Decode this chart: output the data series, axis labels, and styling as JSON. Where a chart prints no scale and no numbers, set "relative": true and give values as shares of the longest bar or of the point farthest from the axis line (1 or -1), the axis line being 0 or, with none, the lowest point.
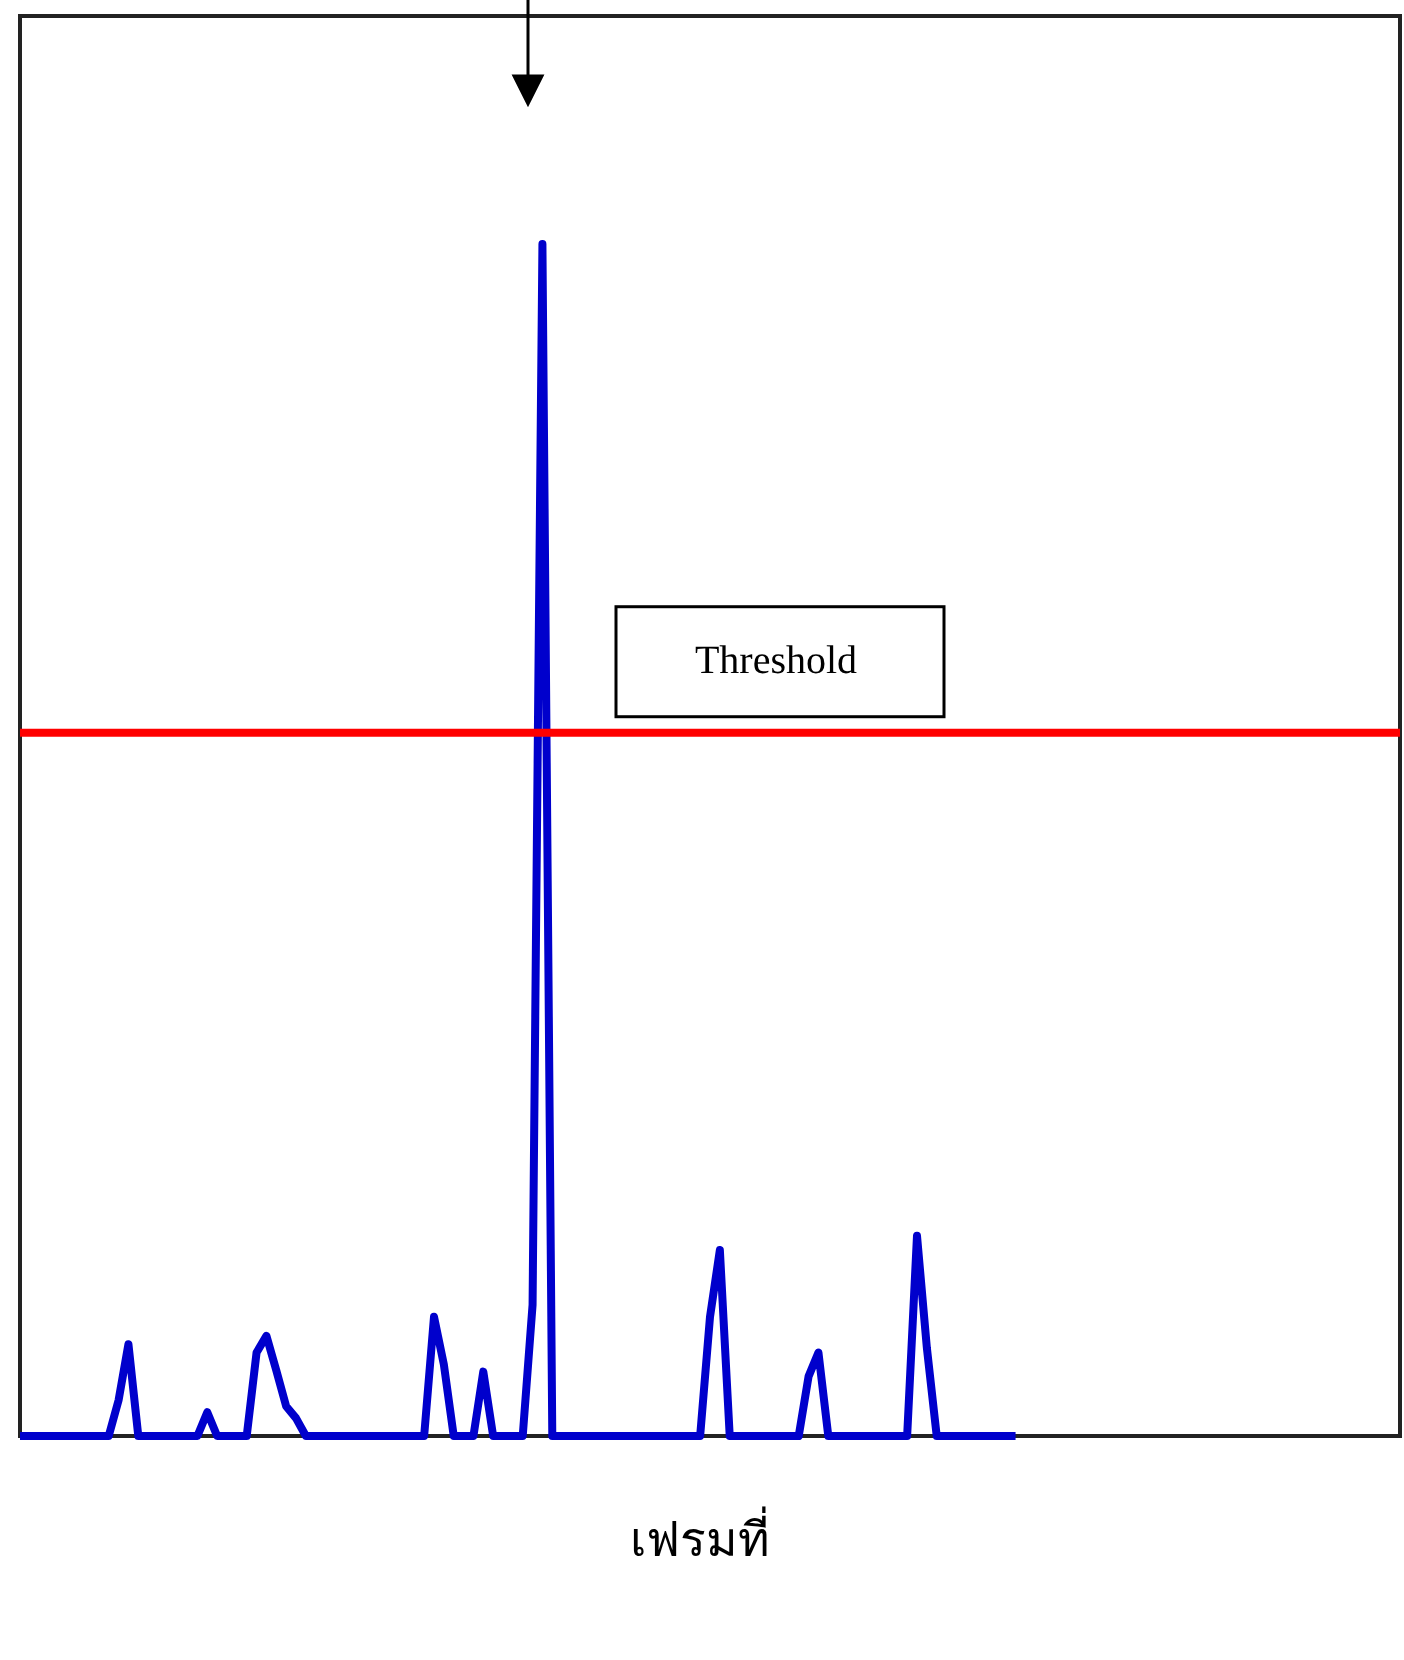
{
  "chart_data": {
    "type": "line",
    "xlabel": "เฟรมที่",
    "relative": true,
    "categories": [
      null,
      null,
      null,
      null,
      null,
      null,
      null,
      null,
      null,
      null,
      null,
      null,
      null,
      null,
      null,
      null,
      null,
      null,
      null,
      null,
      null,
      null,
      null,
      null,
      null,
      null,
      null,
      null,
      null,
      null,
      null,
      null,
      null,
      null,
      null,
      null,
      null,
      null,
      null,
      null,
      null,
      null,
      null,
      null,
      null,
      null,
      null,
      null,
      null,
      null,
      null,
      null,
      null,
      null,
      null,
      null,
      null,
      null,
      null,
      null,
      null,
      null,
      null,
      null,
      null,
      null,
      null,
      null,
      null,
      null,
      null,
      null,
      null,
      null,
      null,
      null,
      null,
      null,
      null,
      null,
      null,
      null,
      null,
      null,
      null,
      null,
      null,
      null,
      null,
      null,
      null,
      null,
      null,
      null,
      null,
      null,
      null,
      null,
      null,
      null,
      null,
      null,
      null,
      null,
      null,
      null,
      null,
      null,
      null,
      null,
      null,
      null,
      null,
      null,
      null,
      null,
      null,
      null,
      null,
      null,
      null,
      null,
      null,
      null,
      null,
      null,
      null,
      null,
      null,
      null,
      null,
      null,
      null,
      null,
      null,
      null,
      null,
      null,
      null,
      null,
      null
    ],
    "series": [
      {
        "color": "#0000cc",
        "values": [
          0,
          0,
          0,
          0,
          0,
          0,
          0,
          0,
          0,
          0,
          0.03,
          0.077,
          0,
          0,
          0,
          0,
          0,
          0,
          0,
          0.02,
          0,
          0,
          0,
          0,
          0.07,
          0.084,
          0.055,
          0.025,
          0.015,
          0,
          0,
          0,
          0,
          0,
          0,
          0,
          0,
          0,
          0,
          0,
          0,
          0,
          0.1,
          0.06,
          0,
          0,
          0,
          0.054,
          0,
          0,
          0,
          0,
          0.11,
          1,
          0,
          0,
          0,
          0,
          0,
          0,
          0,
          0,
          0,
          0,
          0,
          0,
          0,
          0,
          0,
          0,
          0.1,
          0.156,
          0,
          0,
          0,
          0,
          0,
          0,
          0,
          0,
          0.05,
          0.07,
          0,
          0,
          0,
          0,
          0,
          0,
          0,
          0,
          0,
          0.168,
          0.074,
          0,
          0,
          0,
          0,
          0,
          0,
          0,
          0,
          0,
          null,
          null,
          null,
          null,
          null,
          null,
          null,
          null,
          null,
          null,
          null,
          null,
          null,
          null,
          null,
          null,
          null,
          null,
          null,
          null,
          null,
          null,
          null,
          null,
          null,
          null,
          null,
          null,
          null,
          null,
          null,
          null,
          null,
          null,
          null,
          null,
          null,
          null,
          null
        ]
      }
    ],
    "ref_lines": [
      {
        "axis": "y",
        "value": 0.59,
        "label": "Threshold",
        "color": "#ff0000"
      }
    ]
  }
}
